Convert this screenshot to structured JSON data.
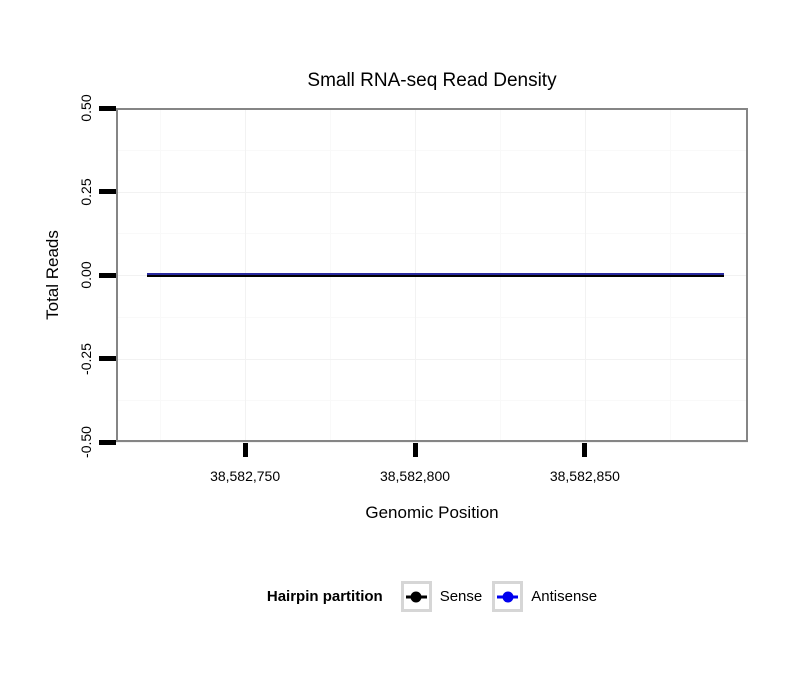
{
  "figure": {
    "background": "#ffffff"
  },
  "chart_data": {
    "type": "line",
    "title": "Small RNA-seq Read Density",
    "xlabel": "Genomic Position",
    "ylabel": "Total Reads",
    "xlim": [
      38582712,
      38582898
    ],
    "ylim": [
      -0.5,
      0.5
    ],
    "x_ticks": [
      {
        "value": 38582750,
        "label": "38,582,750"
      },
      {
        "value": 38582800,
        "label": "38,582,800"
      },
      {
        "value": 38582850,
        "label": "38,582,850"
      }
    ],
    "y_ticks": [
      {
        "value": 0.5,
        "label": "0.50"
      },
      {
        "value": 0.25,
        "label": "0.25"
      },
      {
        "value": 0.0,
        "label": "0.00"
      },
      {
        "value": -0.25,
        "label": "-0.25"
      },
      {
        "value": -0.5,
        "label": "-0.50"
      }
    ],
    "x_minor_gridlines": [
      38582725,
      38582775,
      38582825,
      38582875
    ],
    "y_minor_gridlines": [
      0.375,
      0.125,
      -0.125,
      -0.375
    ],
    "grid": "major+minor",
    "legend_position": "bottom",
    "series": [
      {
        "name": "Sense",
        "color": "#000000",
        "x_start": 38582721,
        "x_end": 38582891,
        "y": 0
      },
      {
        "name": "Antisense",
        "color": "#0000EE",
        "x_start": 38582721,
        "x_end": 38582891,
        "y": 0
      }
    ]
  },
  "legend": {
    "title": "Hairpin partition",
    "items": [
      {
        "label": "Sense",
        "color": "#000000"
      },
      {
        "label": "Antisense",
        "color": "#0000EE"
      }
    ]
  },
  "colors": {
    "panel_border": "#858585",
    "tick": "#000000",
    "grid_major": "#f2f2f2",
    "grid_minor": "#f9f9f9",
    "legend_key_border": "#d6d6d6",
    "antisense_overlay": "#2a2aa0"
  }
}
